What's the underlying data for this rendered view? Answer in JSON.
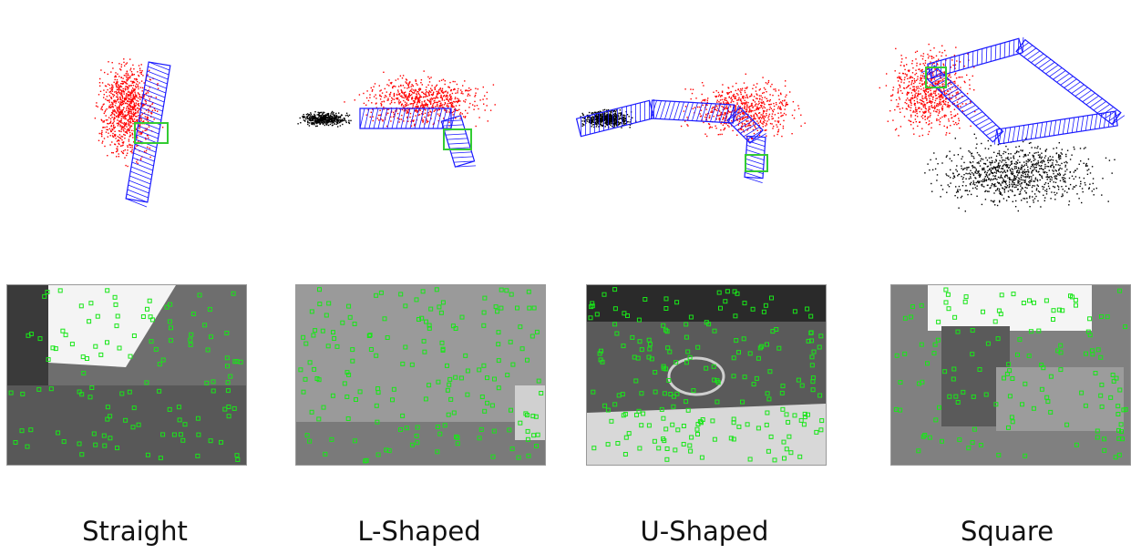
{
  "panels": [
    {
      "label": "Straight",
      "map_style": "straight"
    },
    {
      "label": "L-Shaped",
      "map_style": "l-shaped"
    },
    {
      "label": "U-Shaped",
      "map_style": "u-shaped"
    },
    {
      "label": "Square",
      "map_style": "square"
    }
  ],
  "colors": {
    "map_points_red": "#ff0000",
    "map_points_black": "#000000",
    "camera_trajectory_blue": "#1a1aff",
    "current_frame_green": "#33cc33",
    "feature_green": "#19e619"
  }
}
